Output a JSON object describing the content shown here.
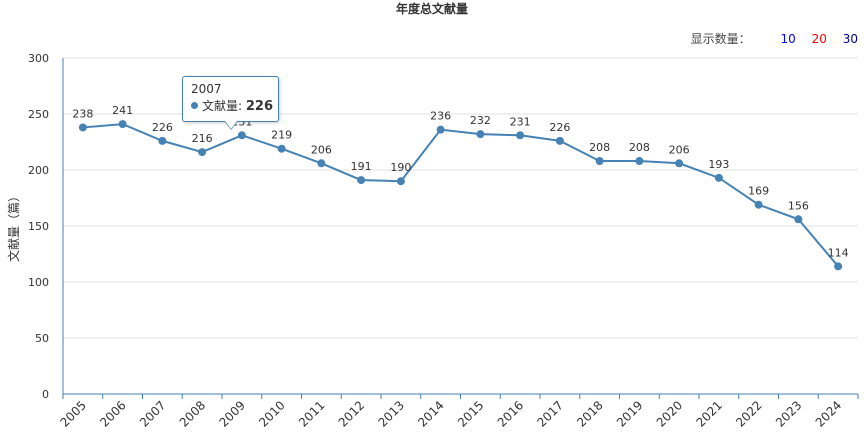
{
  "chart_data": {
    "type": "line",
    "title": "年度总文献量",
    "ylabel": "文献量（篇）",
    "xlabel": "",
    "ylim": [
      0,
      300
    ],
    "yticks": [
      0,
      50,
      100,
      150,
      200,
      250,
      300
    ],
    "grid": true,
    "categories": [
      "2005",
      "2006",
      "2007",
      "2008",
      "2009",
      "2010",
      "2011",
      "2012",
      "2013",
      "2014",
      "2015",
      "2016",
      "2017",
      "2018",
      "2019",
      "2020",
      "2021",
      "2022",
      "2023",
      "2024"
    ],
    "values": [
      238,
      241,
      226,
      216,
      231,
      219,
      206,
      191,
      190,
      236,
      232,
      231,
      226,
      208,
      208,
      206,
      193,
      169,
      156,
      114
    ],
    "line_color": "#4682b4"
  },
  "controls": {
    "show_count_label": "显示数量：",
    "options": [
      {
        "label": "10",
        "color": "#0000ff"
      },
      {
        "label": "20",
        "color": "#ff0000"
      },
      {
        "label": "30",
        "color": "#00008b"
      }
    ]
  },
  "tooltip": {
    "x": "2007",
    "series_name": "文献量",
    "value": "226"
  }
}
